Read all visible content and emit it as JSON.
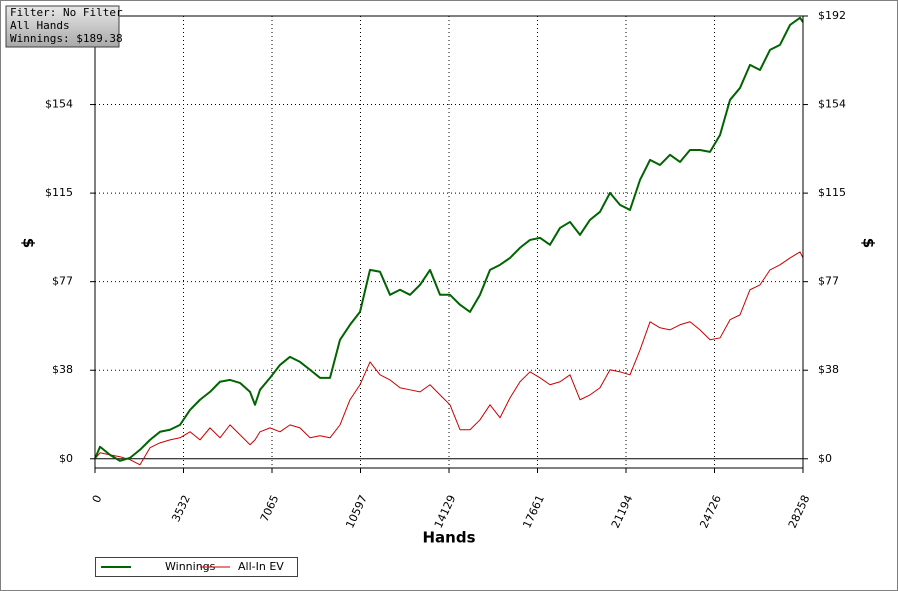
{
  "chart_data": {
    "type": "line",
    "annotations": [
      "Filter: No Filter",
      "All Hands",
      "Winnings: $189.38"
    ],
    "xlabel": "Hands",
    "ylabel": "$",
    "grid": true,
    "xlim": [
      0,
      28258
    ],
    "ylim": [
      -4,
      192
    ],
    "xticks": [
      0,
      3532,
      7065,
      10597,
      14129,
      17661,
      21194,
      24726,
      28258
    ],
    "yticks": [
      {
        "value": 0,
        "label": "$0"
      },
      {
        "value": 38.4,
        "label": "$38"
      },
      {
        "value": 76.8,
        "label": "$77"
      },
      {
        "value": 115.2,
        "label": "$115"
      },
      {
        "value": 153.6,
        "label": "$154"
      },
      {
        "value": 192,
        "label": "$192"
      }
    ],
    "x": [
      0,
      200,
      599,
      998,
      1397,
      1796,
      2195,
      2594,
      2993,
      3393,
      3792,
      4191,
      4590,
      4989,
      5388,
      5787,
      6187,
      6386,
      6586,
      6985,
      7384,
      7783,
      8182,
      8581,
      8980,
      9380,
      9779,
      10178,
      10577,
      10976,
      11375,
      11774,
      12173,
      12573,
      12972,
      13371,
      13770,
      14169,
      14568,
      14967,
      15366,
      15766,
      16165,
      16564,
      16963,
      17362,
      17761,
      18160,
      18560,
      18959,
      19358,
      19757,
      20156,
      20555,
      20954,
      21353,
      21753,
      22152,
      22551,
      22950,
      23349,
      23748,
      24147,
      24546,
      24946,
      25345,
      25744,
      26143,
      26542,
      26941,
      27340,
      27740,
      28139,
      28258
    ],
    "series": [
      {
        "name": "Winnings",
        "color": "#006400",
        "values": [
          0,
          5.2,
          1.7,
          -0.9,
          0.4,
          3.9,
          8.2,
          11.7,
          12.6,
          14.7,
          21.2,
          25.6,
          29,
          33.4,
          34.2,
          32.9,
          29,
          23.4,
          29.9,
          35.1,
          40.7,
          44.2,
          42,
          38.6,
          35.1,
          35.1,
          51.6,
          58.1,
          63.7,
          81.9,
          81.1,
          71.1,
          73.3,
          71.1,
          75.4,
          81.9,
          71.1,
          71.1,
          66.8,
          63.7,
          71.1,
          81.9,
          84.1,
          87.1,
          91.5,
          94.9,
          95.8,
          92.8,
          100.1,
          102.7,
          97.1,
          103.6,
          107.1,
          115.3,
          110.1,
          107.9,
          120.9,
          129.6,
          127.4,
          131.8,
          128.7,
          133.9,
          133.9,
          133.1,
          140.4,
          155.6,
          160.8,
          170.8,
          168.6,
          177.3,
          179.5,
          188.1,
          191.2,
          189.38
        ]
      },
      {
        "name": "All-In EV",
        "color": "#cc0000",
        "values": [
          0,
          2.6,
          1.7,
          0.9,
          -0.4,
          -2.6,
          4.8,
          6.9,
          8.2,
          9.1,
          11.7,
          8.2,
          13.4,
          9.1,
          14.7,
          10.4,
          6.1,
          8.2,
          11.7,
          13.4,
          11.7,
          14.7,
          13.4,
          9.1,
          10,
          9.1,
          14.7,
          25.6,
          32.1,
          42,
          36.4,
          34.2,
          30.8,
          29.9,
          29,
          32.1,
          27.7,
          23.4,
          12.6,
          12.6,
          16.9,
          23.4,
          17.8,
          26.4,
          33.4,
          37.7,
          35.1,
          32.1,
          33.4,
          36.4,
          25.6,
          27.7,
          30.8,
          38.6,
          37.7,
          36.4,
          47.2,
          59.4,
          56.8,
          55.9,
          58.1,
          59.4,
          55.9,
          51.6,
          52.4,
          60.3,
          62.4,
          73.3,
          75.4,
          81.9,
          84.1,
          87.1,
          89.7,
          87.1
        ]
      }
    ]
  }
}
